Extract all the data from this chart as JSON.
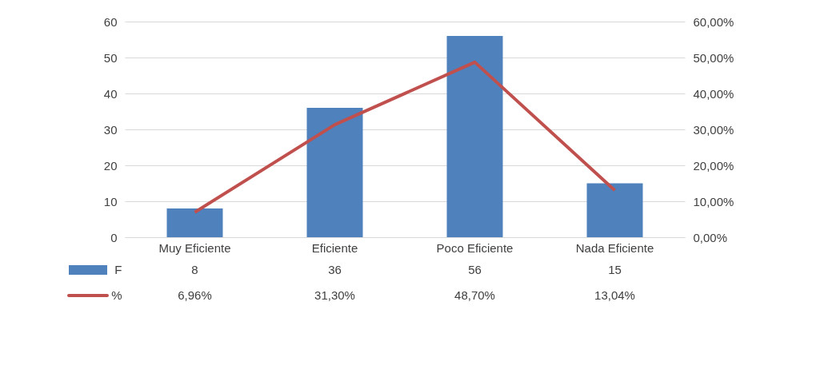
{
  "chart_data": {
    "type": "bar",
    "categories": [
      "Muy Eficiente",
      "Eficiente",
      "Poco Eficiente",
      "Nada Eficiente"
    ],
    "series": [
      {
        "name": "F",
        "color": "#4f81bd",
        "values": [
          8,
          36,
          56,
          15
        ],
        "value_labels": [
          "8",
          "36",
          "56",
          "15"
        ]
      },
      {
        "name": "%",
        "type": "line",
        "axis": "y2",
        "color": "#c0504d",
        "values": [
          6.96,
          31.3,
          48.7,
          13.04
        ],
        "value_labels": [
          "6,96%",
          "31,30%",
          "48,70%",
          "13,04%"
        ]
      }
    ],
    "ylim": [
      0,
      60
    ],
    "yticks": [
      0,
      10,
      20,
      30,
      40,
      50,
      60
    ],
    "y2lim": [
      0,
      60
    ],
    "y2ticks": [
      {
        "value": 0,
        "label": "0,00%"
      },
      {
        "value": 10,
        "label": "10,00%"
      },
      {
        "value": 20,
        "label": "20,00%"
      },
      {
        "value": 30,
        "label": "30,00%"
      },
      {
        "value": 40,
        "label": "40,00%"
      },
      {
        "value": 50,
        "label": "50,00%"
      },
      {
        "value": 60,
        "label": "60,00%"
      }
    ],
    "grid": "y",
    "legend": "bottom",
    "marker": "none"
  }
}
